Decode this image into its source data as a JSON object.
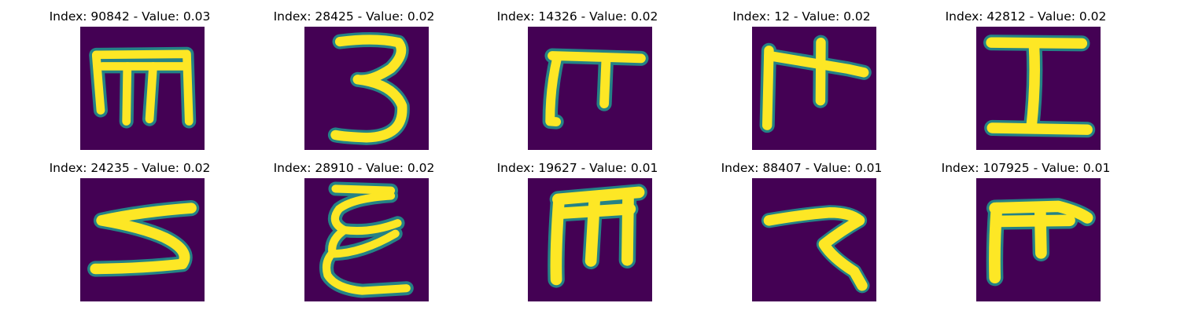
{
  "colors": {
    "background": "#440154",
    "stroke_core": "#fde725",
    "stroke_edge": "#21918c",
    "stroke_mid": "#5ec962"
  },
  "panels": [
    {
      "title": "Index: 90842 - Value: 0.03",
      "glyph": "m-shape"
    },
    {
      "title": "Index: 28425 - Value: 0.02",
      "glyph": "three-shape"
    },
    {
      "title": "Index: 14326 - Value: 0.02",
      "glyph": "pi-shape"
    },
    {
      "title": "Index: 12 - Value: 0.02",
      "glyph": "pi-arrow-shape"
    },
    {
      "title": "Index: 42812 - Value: 0.02",
      "glyph": "i-beam-shape"
    },
    {
      "title": "Index: 24235 - Value: 0.02",
      "glyph": "five-like-shape"
    },
    {
      "title": "Index: 28910 - Value: 0.02",
      "glyph": "epsilon-shape"
    },
    {
      "title": "Index: 19627 - Value: 0.01",
      "glyph": "m-box-shape"
    },
    {
      "title": "Index: 88407 - Value: 0.01",
      "glyph": "seven-hook-shape"
    },
    {
      "title": "Index: 107925 - Value: 0.01",
      "glyph": "pi-box-shape"
    }
  ]
}
